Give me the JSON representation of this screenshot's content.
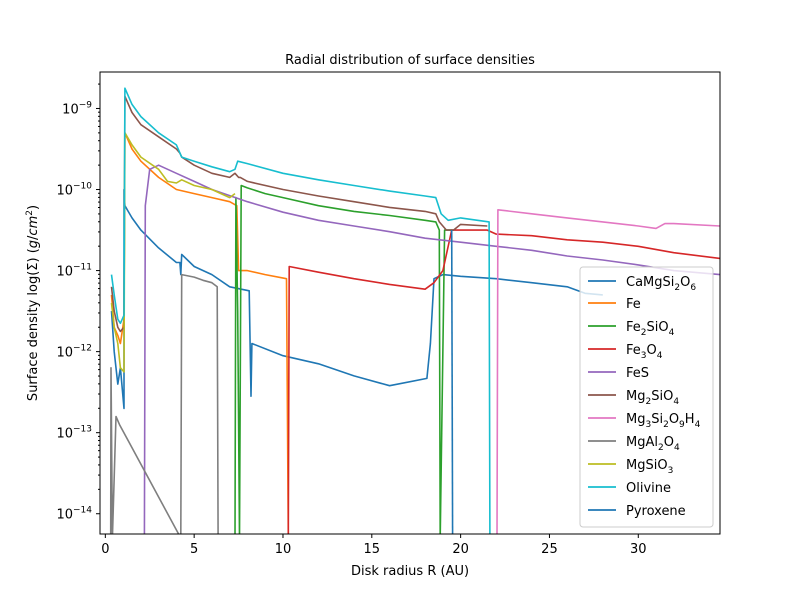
{
  "chart_data": {
    "type": "line",
    "title": "Radial distribution of surface densities",
    "xlabel": "Disk radius R (AU)",
    "ylabel": "Surface density log(Σ) (g/cm²)",
    "yscale": "log",
    "xlim": [
      -0.3,
      34.6
    ],
    "ylim_exp": [
      -14.25,
      -8.55
    ],
    "x_ticks": [
      0,
      5,
      10,
      15,
      20,
      25,
      30
    ],
    "y_ticks": [
      {
        "exp": -9,
        "label": "10",
        "sup": "−9"
      },
      {
        "exp": -10,
        "label": "10",
        "sup": "−10"
      },
      {
        "exp": -11,
        "label": "10",
        "sup": "−11"
      },
      {
        "exp": -12,
        "label": "10",
        "sup": "−12"
      },
      {
        "exp": -13,
        "label": "10",
        "sup": "−13"
      },
      {
        "exp": -14,
        "label": "10",
        "sup": "−14"
      }
    ],
    "legend_position": "lower-right",
    "series": [
      {
        "name": "CaMgSi₂O₆",
        "color": "#1f77b4",
        "drop": [
          [
            18.8,
            -11
          ],
          [
            18.8,
            -12.55
          ],
          [
            8.2,
            -12.55
          ],
          [
            8.2,
            -11.5
          ],
          [
            8.1,
            -11.38
          ],
          [
            4.2,
            -11.32
          ],
          [
            4.2,
            -11.1
          ]
        ],
        "points": [
          [
            0.35,
            -11.5
          ],
          [
            0.5,
            -12
          ],
          [
            0.7,
            -12.4
          ],
          [
            0.85,
            -12.2
          ],
          [
            1.05,
            -12.7
          ],
          [
            1.05,
            -10
          ],
          [
            1.1,
            -10.2
          ],
          [
            1.5,
            -10.35
          ],
          [
            2,
            -10.5
          ],
          [
            3,
            -10.72
          ],
          [
            4,
            -10.9
          ],
          [
            4.2,
            -10.9
          ],
          [
            4.25,
            -11.05
          ],
          [
            4.3,
            -10.8
          ],
          [
            5,
            -10.95
          ],
          [
            6,
            -11.05
          ],
          [
            7,
            -11.2
          ],
          [
            8.1,
            -11.25
          ],
          [
            8.2,
            -12.55
          ],
          [
            8.25,
            -11.9
          ],
          [
            10,
            -12.05
          ],
          [
            12,
            -12.15
          ],
          [
            14,
            -12.3
          ],
          [
            16,
            -12.42
          ],
          [
            18.1,
            -12.33
          ],
          [
            18.3,
            -11.9
          ],
          [
            18.5,
            -11.1
          ],
          [
            19,
            -11.05
          ],
          [
            20,
            -11.07
          ],
          [
            22,
            -11.1
          ],
          [
            24,
            -11.15
          ],
          [
            26,
            -11.2
          ],
          [
            27,
            -11.28
          ],
          [
            28,
            -11.3
          ]
        ]
      },
      {
        "name": "Fe",
        "color": "#ff7f0e",
        "points": [
          [
            0.35,
            -11.3
          ],
          [
            0.5,
            -11.7
          ],
          [
            0.7,
            -11.8
          ],
          [
            0.85,
            -11.9
          ],
          [
            1.05,
            -11.6
          ],
          [
            1.1,
            -9.3
          ],
          [
            1.5,
            -9.5
          ],
          [
            2,
            -9.65
          ],
          [
            3,
            -9.85
          ],
          [
            4,
            -10
          ],
          [
            5,
            -10.05
          ],
          [
            6,
            -10.1
          ],
          [
            7,
            -10.15
          ],
          [
            7.4,
            -10.2
          ],
          [
            7.5,
            -11
          ],
          [
            8,
            -11
          ],
          [
            9,
            -11.05
          ],
          [
            10.2,
            -11.1
          ],
          [
            10.3,
            -14.3
          ]
        ]
      },
      {
        "name": "Fe₂SiO₄",
        "color": "#2ca02c",
        "points": [
          [
            7.3,
            -14.3
          ],
          [
            7.35,
            -10.1
          ],
          [
            7.45,
            -11.5
          ],
          [
            7.55,
            -14.3
          ],
          [
            7.65,
            -9.95
          ],
          [
            8,
            -9.98
          ],
          [
            9,
            -10.05
          ],
          [
            10,
            -10.1
          ],
          [
            12,
            -10.2
          ],
          [
            14,
            -10.27
          ],
          [
            16,
            -10.32
          ],
          [
            18,
            -10.38
          ],
          [
            18.6,
            -10.4
          ],
          [
            18.8,
            -10.5
          ],
          [
            18.85,
            -14.3
          ],
          [
            19.1,
            -10.5
          ],
          [
            19.5,
            -10.5
          ]
        ]
      },
      {
        "name": "Fe₃O₄",
        "color": "#d62728",
        "points": [
          [
            10.3,
            -14.3
          ],
          [
            10.35,
            -10.95
          ],
          [
            12,
            -11.02
          ],
          [
            14,
            -11.1
          ],
          [
            16,
            -11.17
          ],
          [
            18,
            -11.23
          ],
          [
            18.5,
            -11.15
          ],
          [
            19,
            -11.0
          ],
          [
            19.5,
            -10.5
          ],
          [
            21.5,
            -10.5
          ],
          [
            22,
            -10.55
          ],
          [
            24,
            -10.57
          ],
          [
            26,
            -10.62
          ],
          [
            28,
            -10.65
          ],
          [
            30,
            -10.7
          ],
          [
            32,
            -10.78
          ],
          [
            34.6,
            -10.85
          ]
        ]
      },
      {
        "name": "FeS",
        "color": "#9467bd",
        "points": [
          [
            2.2,
            -14.3
          ],
          [
            2.25,
            -10.2
          ],
          [
            2.5,
            -9.75
          ],
          [
            3,
            -9.7
          ],
          [
            4,
            -9.8
          ],
          [
            5,
            -9.9
          ],
          [
            6,
            -10.0
          ],
          [
            8,
            -10.15
          ],
          [
            10,
            -10.28
          ],
          [
            12,
            -10.38
          ],
          [
            14,
            -10.45
          ],
          [
            16,
            -10.52
          ],
          [
            18,
            -10.6
          ],
          [
            20,
            -10.65
          ],
          [
            22,
            -10.7
          ],
          [
            24,
            -10.75
          ],
          [
            26,
            -10.82
          ],
          [
            28,
            -10.87
          ],
          [
            30,
            -10.93
          ],
          [
            32,
            -11.0
          ],
          [
            34.6,
            -11.05
          ]
        ]
      },
      {
        "name": "Mg₂SiO₄",
        "color": "#8c564b",
        "points": [
          [
            0.35,
            -11.2
          ],
          [
            0.5,
            -11.5
          ],
          [
            0.7,
            -11.7
          ],
          [
            0.85,
            -11.75
          ],
          [
            1.05,
            -11.7
          ],
          [
            1.1,
            -8.85
          ],
          [
            1.5,
            -9.05
          ],
          [
            2,
            -9.2
          ],
          [
            3,
            -9.35
          ],
          [
            4,
            -9.5
          ],
          [
            4.2,
            -9.55
          ],
          [
            4.3,
            -9.6
          ],
          [
            5,
            -9.7
          ],
          [
            6,
            -9.8
          ],
          [
            7,
            -9.85
          ],
          [
            7.3,
            -9.8
          ],
          [
            7.5,
            -9.85
          ],
          [
            7.6,
            -9.85
          ],
          [
            8,
            -9.9
          ],
          [
            10,
            -10.0
          ],
          [
            12,
            -10.08
          ],
          [
            14,
            -10.15
          ],
          [
            16,
            -10.22
          ],
          [
            18,
            -10.27
          ],
          [
            18.6,
            -10.3
          ],
          [
            18.8,
            -10.4
          ],
          [
            19.2,
            -10.5
          ],
          [
            19.6,
            -10.5
          ],
          [
            20,
            -10.43
          ],
          [
            21.5,
            -10.45
          ]
        ]
      },
      {
        "name": "Mg₃Si₂O₉H₄",
        "color": "#e377c2",
        "points": [
          [
            22.05,
            -14.3
          ],
          [
            22.1,
            -10.25
          ],
          [
            24,
            -10.3
          ],
          [
            26,
            -10.35
          ],
          [
            28,
            -10.4
          ],
          [
            30,
            -10.45
          ],
          [
            31,
            -10.48
          ],
          [
            31.5,
            -10.42
          ],
          [
            32,
            -10.42
          ],
          [
            34.6,
            -10.45
          ]
        ]
      },
      {
        "name": "MgAl₂O₄",
        "color": "#7f7f7f",
        "points": [
          [
            0.3,
            -14.3
          ],
          [
            0.32,
            -12.2
          ],
          [
            0.4,
            -14.3
          ],
          [
            0.6,
            -12.8
          ],
          [
            0.8,
            -12.9
          ],
          [
            4.25,
            -14.3
          ],
          [
            4.3,
            -11.05
          ],
          [
            5,
            -11.08
          ],
          [
            5.5,
            -11.12
          ],
          [
            6,
            -11.15
          ],
          [
            6.3,
            -11.2
          ],
          [
            6.35,
            -14.3
          ]
        ]
      },
      {
        "name": "MgSiO₃",
        "color": "#bcbd22",
        "points": [
          [
            0.35,
            -11.4
          ],
          [
            0.5,
            -11.7
          ],
          [
            0.7,
            -11.9
          ],
          [
            0.85,
            -12.2
          ],
          [
            1.05,
            -12.25
          ],
          [
            1.1,
            -9.3
          ],
          [
            1.5,
            -9.45
          ],
          [
            2,
            -9.6
          ],
          [
            3,
            -9.75
          ],
          [
            3.5,
            -9.9
          ],
          [
            4,
            -9.92
          ],
          [
            4.3,
            -9.88
          ],
          [
            5,
            -9.95
          ],
          [
            6,
            -10.0
          ],
          [
            7,
            -10.1
          ],
          [
            7.3,
            -10.05
          ]
        ]
      },
      {
        "name": "Olivine",
        "color": "#17becf",
        "points": [
          [
            0.35,
            -11.05
          ],
          [
            0.5,
            -11.3
          ],
          [
            0.7,
            -11.6
          ],
          [
            0.85,
            -11.65
          ],
          [
            1.05,
            -11.55
          ],
          [
            1.1,
            -8.75
          ],
          [
            1.5,
            -8.95
          ],
          [
            2,
            -9.1
          ],
          [
            3,
            -9.3
          ],
          [
            4,
            -9.45
          ],
          [
            4.3,
            -9.6
          ],
          [
            5,
            -9.65
          ],
          [
            6,
            -9.72
          ],
          [
            7,
            -9.78
          ],
          [
            7.3,
            -9.75
          ],
          [
            7.45,
            -9.65
          ],
          [
            8,
            -9.68
          ],
          [
            10,
            -9.8
          ],
          [
            12,
            -9.88
          ],
          [
            14,
            -9.95
          ],
          [
            16,
            -10.02
          ],
          [
            18,
            -10.08
          ],
          [
            18.6,
            -10.1
          ],
          [
            18.9,
            -10.3
          ],
          [
            19.3,
            -10.38
          ],
          [
            20,
            -10.35
          ],
          [
            21.6,
            -10.4
          ],
          [
            21.65,
            -14.3
          ]
        ]
      },
      {
        "name": "Pyroxene",
        "color": "#1f77b4",
        "points": [
          [
            19.5,
            -10.5
          ],
          [
            19.55,
            -14.3
          ]
        ]
      }
    ]
  },
  "legend_labels": {
    "l0_base": "CaMgSi",
    "l0_s1": "2",
    "l0_mid": "O",
    "l0_s2": "6",
    "l1": "Fe",
    "l2_base": "Fe",
    "l2_s1": "2",
    "l2_mid": "SiO",
    "l2_s2": "4",
    "l3_base": "Fe",
    "l3_s1": "3",
    "l3_mid": "O",
    "l3_s2": "4",
    "l4": "FeS",
    "l5_base": "Mg",
    "l5_s1": "2",
    "l5_mid": "SiO",
    "l5_s2": "4",
    "l6_base": "Mg",
    "l6_s1": "3",
    "l6_mid": "Si",
    "l6_s2": "2",
    "l6_mid2": "O",
    "l6_s3": "9",
    "l6_mid3": "H",
    "l6_s4": "4",
    "l7_base": "MgAl",
    "l7_s1": "2",
    "l7_mid": "O",
    "l7_s2": "4",
    "l8_base": "MgSiO",
    "l8_s1": "3",
    "l9": "Olivine",
    "l10": "Pyroxene"
  },
  "ylabel_parts": {
    "a": "Surface density log(Σ) (",
    "b": "g",
    "c": "/",
    "d": "cm",
    "e": "2",
    "f": ")"
  }
}
